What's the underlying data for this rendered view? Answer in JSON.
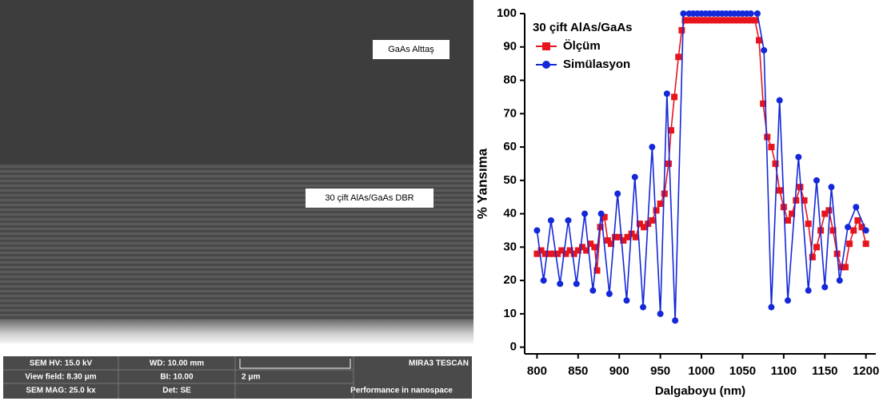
{
  "sem_image": {
    "labels": [
      "GaAs Alttaş",
      "30 çift AlAs/GaAs DBR"
    ],
    "info_bar": {
      "rows": [
        [
          "SEM HV: 15.0 kV",
          "WD: 10.00 mm"
        ],
        [
          "View field: 8.30 μm",
          "BI: 10.00"
        ],
        [
          "SEM MAG: 25.0 kx",
          "Det: SE"
        ]
      ],
      "scale": "2 μm",
      "brand": "MIRA3 TESCAN",
      "slogan": "Performance in nanospace"
    }
  },
  "chart_data": {
    "type": "line",
    "legend_title": "30 çift AlAs/GaAs",
    "xlabel": "Dalgaboyu (nm)",
    "ylabel": "% Yansıma",
    "xlim": [
      785,
      1212
    ],
    "ylim": [
      -2,
      100
    ],
    "xticks": [
      800,
      850,
      900,
      950,
      1000,
      1050,
      1100,
      1150,
      1200
    ],
    "yticks": [
      0,
      10,
      20,
      30,
      40,
      50,
      60,
      70,
      80,
      90,
      100
    ],
    "legend": "upper left",
    "series": [
      {
        "name": "Ölçüm",
        "color": "#e8141c",
        "marker": "square",
        "x": [
          800,
          805,
          810,
          815,
          820,
          825,
          830,
          835,
          840,
          845,
          850,
          855,
          860,
          865,
          870,
          873,
          877,
          882,
          886,
          890,
          895,
          900,
          905,
          910,
          915,
          920,
          925,
          930,
          935,
          940,
          945,
          950,
          955,
          960,
          963,
          967,
          972,
          976,
          980,
          985,
          990,
          995,
          1000,
          1005,
          1010,
          1015,
          1020,
          1025,
          1030,
          1035,
          1040,
          1045,
          1050,
          1055,
          1060,
          1065,
          1070,
          1075,
          1080,
          1085,
          1090,
          1095,
          1100,
          1105,
          1110,
          1115,
          1120,
          1125,
          1130,
          1135,
          1140,
          1145,
          1150,
          1155,
          1160,
          1165,
          1170,
          1175,
          1180,
          1185,
          1190,
          1195,
          1200
        ],
        "values": [
          28,
          29,
          28,
          28,
          28,
          28,
          29,
          28,
          29,
          28,
          29,
          30,
          29,
          31,
          30,
          23,
          36,
          39,
          32,
          31,
          33,
          33,
          32,
          33,
          34,
          33,
          37,
          36,
          37,
          38,
          41,
          43,
          46,
          55,
          65,
          75,
          87,
          95,
          98,
          98,
          98,
          98,
          98,
          98,
          98,
          98,
          98,
          98,
          98,
          98,
          98,
          98,
          98,
          98,
          98,
          98,
          92,
          73,
          63,
          60,
          55,
          47,
          42,
          38,
          40,
          44,
          48,
          44,
          37,
          27,
          30,
          35,
          40,
          41,
          35,
          28,
          24,
          24,
          31,
          35,
          38,
          36,
          31
        ]
      },
      {
        "name": "Simülasyon",
        "color": "#1428d8",
        "marker": "circle",
        "x": [
          800,
          808,
          817,
          828,
          838,
          848,
          858,
          868,
          878,
          888,
          898,
          909,
          919,
          929,
          940,
          950,
          958,
          968,
          978,
          985,
          990,
          995,
          1000,
          1005,
          1010,
          1015,
          1020,
          1025,
          1030,
          1035,
          1040,
          1045,
          1050,
          1055,
          1060,
          1068,
          1076,
          1085,
          1095,
          1105,
          1118,
          1130,
          1140,
          1150,
          1158,
          1168,
          1178,
          1188,
          1200
        ],
        "values": [
          35,
          20,
          38,
          19,
          38,
          19,
          40,
          17,
          40,
          16,
          46,
          14,
          51,
          12,
          60,
          10,
          76,
          8,
          100,
          100,
          100,
          100,
          100,
          100,
          100,
          100,
          100,
          100,
          100,
          100,
          100,
          100,
          100,
          100,
          100,
          100,
          89,
          12,
          74,
          14,
          57,
          17,
          50,
          18,
          48,
          20,
          36,
          42,
          35
        ]
      }
    ]
  }
}
